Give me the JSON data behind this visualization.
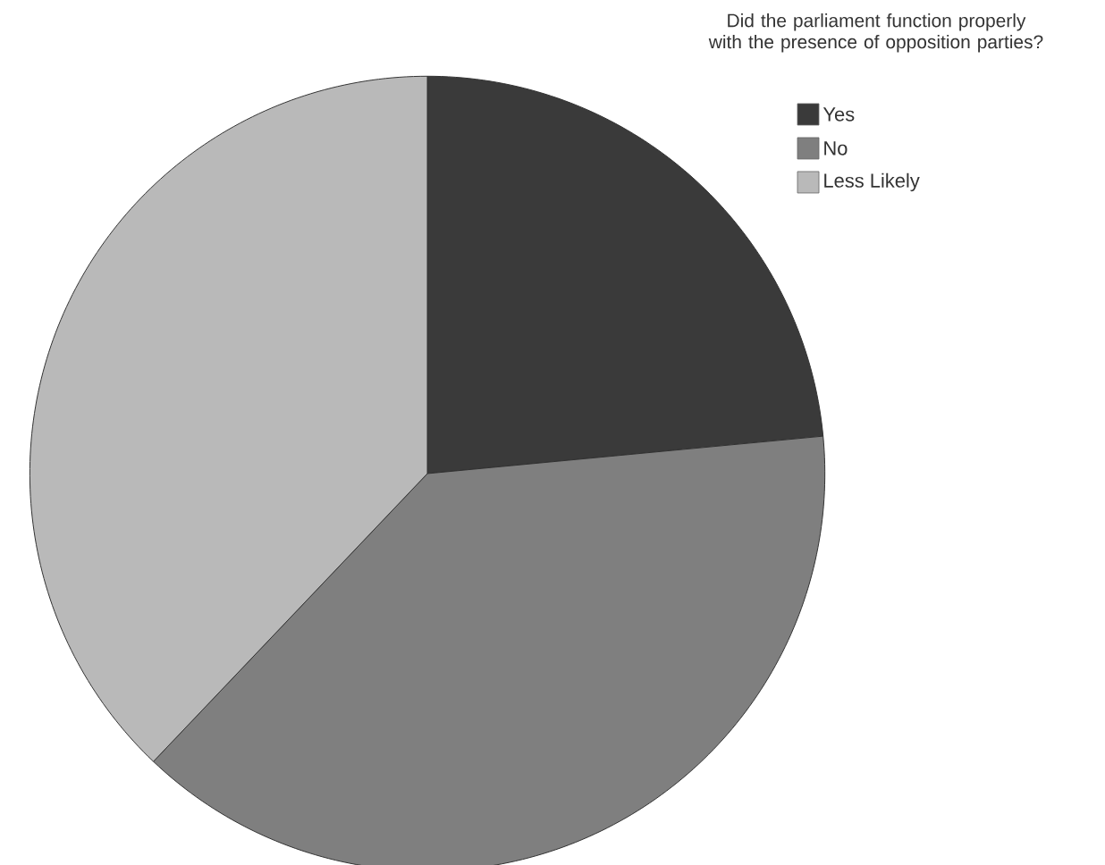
{
  "chart_data": {
    "type": "pie",
    "title": "Did the parliament function properly with the presence of opposition parties?",
    "categories": [
      "Yes",
      "No",
      "Less Likely"
    ],
    "values": [
      23.5,
      38.6,
      37.9
    ],
    "colors": [
      "#3a3a3a",
      "#7f7f7f",
      "#b9b9b9"
    ],
    "legend": "top right"
  }
}
